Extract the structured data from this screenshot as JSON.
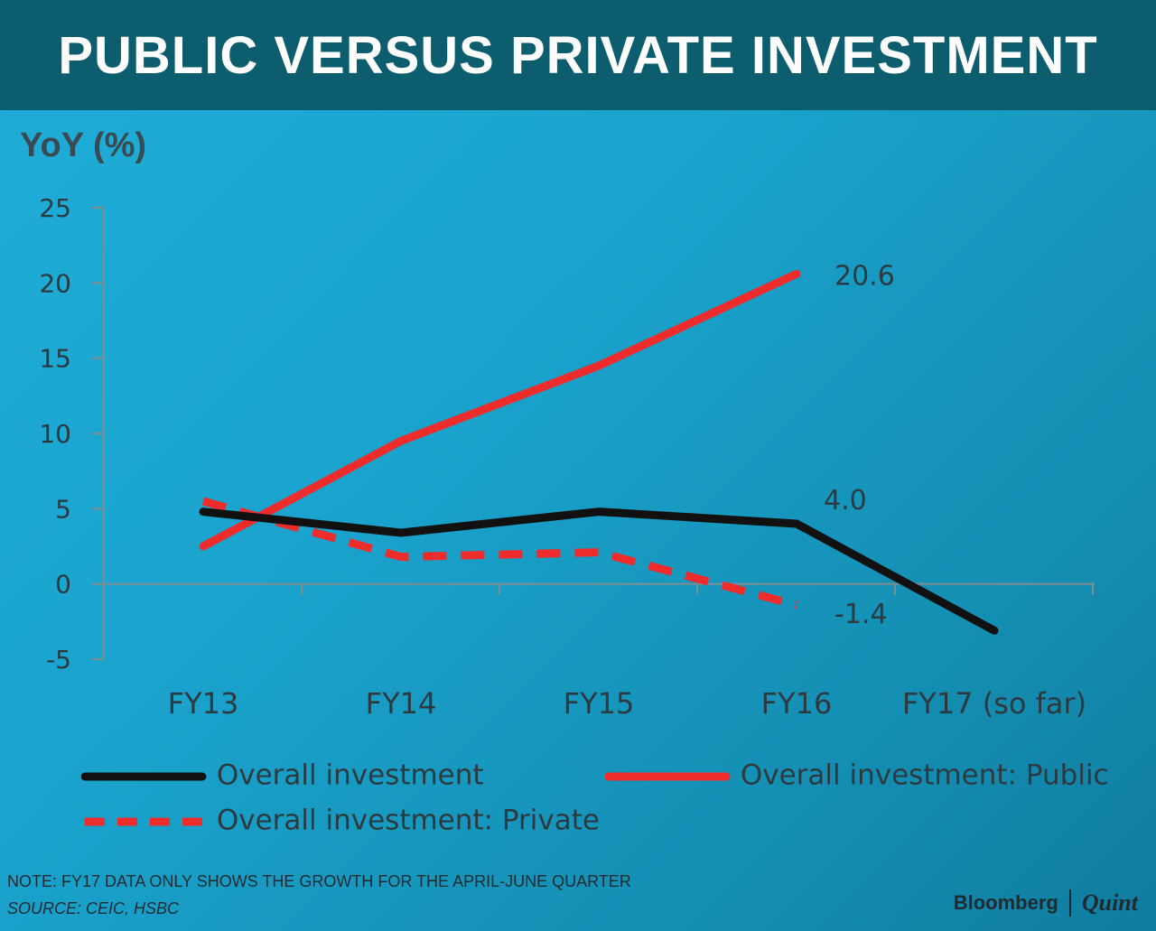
{
  "header": {
    "title": "PUBLIC VERSUS PRIVATE INVESTMENT"
  },
  "chart_data": {
    "type": "line",
    "title": "PUBLIC VERSUS PRIVATE INVESTMENT",
    "ylabel": "YoY (%)",
    "xlabel": "",
    "categories": [
      "FY13",
      "FY14",
      "FY15",
      "FY16",
      "FY17 (so far)"
    ],
    "ylim": [
      -5,
      25
    ],
    "yticks": [
      -5,
      0,
      5,
      10,
      15,
      20,
      25
    ],
    "series": [
      {
        "name": "Overall investment",
        "color": "#111111",
        "style": "solid",
        "values": [
          4.8,
          3.4,
          4.8,
          4.0,
          -3.1
        ]
      },
      {
        "name": "Overall investment: Public",
        "color": "#ee2c2c",
        "style": "solid",
        "values": [
          2.5,
          9.5,
          14.5,
          20.6,
          null
        ]
      },
      {
        "name": "Overall investment: Private",
        "color": "#ee2c2c",
        "style": "dashed",
        "values": [
          5.5,
          1.8,
          2.1,
          -1.4,
          null
        ]
      }
    ],
    "annotations": [
      {
        "series": 1,
        "index": 3,
        "text": "20.6"
      },
      {
        "series": 0,
        "index": 3,
        "text": "4.0"
      },
      {
        "series": 2,
        "index": 3,
        "text": "-1.4"
      }
    ],
    "legend_position": "bottom"
  },
  "footer": {
    "note": "NOTE: FY17 DATA ONLY SHOWS THE GROWTH FOR THE APRIL-JUNE QUARTER",
    "source": "SOURCE: CEIC, HSBC",
    "brand_left": "Bloomberg",
    "brand_right": "Quint"
  }
}
